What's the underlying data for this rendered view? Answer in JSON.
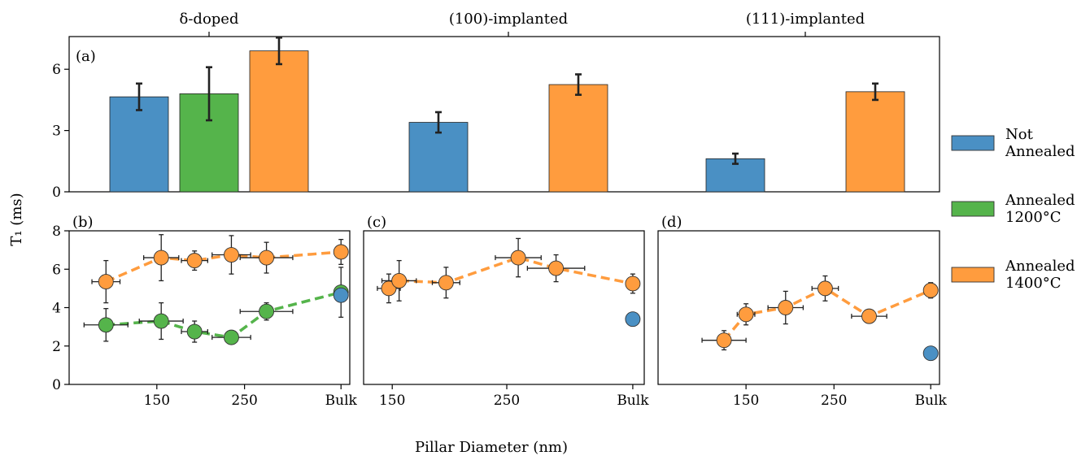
{
  "colors": {
    "not_annealed": "#4a90c4",
    "annealed_1200": "#55b44b",
    "annealed_1400": "#ff9c3e",
    "axis": "#000000",
    "errorbar": "#222222"
  },
  "legend": {
    "position": "right",
    "entries": [
      {
        "key": "not_annealed",
        "lines": [
          "Not",
          "Annealed"
        ]
      },
      {
        "key": "annealed_1200",
        "lines": [
          "Annealed",
          "1200°C"
        ]
      },
      {
        "key": "annealed_1400",
        "lines": [
          "Annealed",
          "1400°C"
        ]
      }
    ]
  },
  "ylabel": "T₁ (ms)",
  "xlabel": "Pillar Diameter (nm)",
  "chart_data": [
    {
      "panel": "(a)",
      "type": "bar",
      "categories": [
        "δ-doped",
        "(100)-implanted",
        "(111)-implanted"
      ],
      "ylim": [
        0,
        7.6
      ],
      "yticks": [
        0,
        3,
        6
      ],
      "grid": false,
      "series": [
        {
          "key": "not_annealed",
          "values": [
            4.65,
            3.4,
            1.62
          ],
          "errors": [
            0.65,
            0.5,
            0.25
          ]
        },
        {
          "key": "annealed_1200",
          "values": [
            4.8,
            null,
            null
          ],
          "errors": [
            1.3,
            null,
            null
          ]
        },
        {
          "key": "annealed_1400",
          "values": [
            6.9,
            5.25,
            4.9
          ],
          "errors": [
            0.65,
            0.5,
            0.4
          ]
        }
      ]
    },
    {
      "panel": "(b)",
      "type": "scatter",
      "xlim": [
        50,
        370
      ],
      "ylim": [
        0,
        8
      ],
      "xticks": [
        {
          "value": 150,
          "label": "150"
        },
        {
          "value": 250,
          "label": "250"
        },
        {
          "value": 360,
          "label": "Bulk"
        }
      ],
      "yticks": [
        0,
        2,
        4,
        6,
        8
      ],
      "series": [
        {
          "key": "annealed_1400",
          "dashed": true,
          "x": [
            92,
            155,
            193,
            235,
            275,
            360
          ],
          "y": [
            5.35,
            6.6,
            6.45,
            6.75,
            6.6,
            6.9
          ],
          "xerr": [
            16,
            20,
            15,
            22,
            30,
            0
          ],
          "yerr": [
            1.1,
            1.2,
            0.5,
            1.0,
            0.8,
            0.65
          ]
        },
        {
          "key": "annealed_1200",
          "dashed": true,
          "x": [
            92,
            155,
            193,
            235,
            275,
            360
          ],
          "y": [
            3.1,
            3.3,
            2.75,
            2.45,
            3.8,
            4.8
          ],
          "xerr": [
            25,
            25,
            15,
            22,
            30,
            0
          ],
          "yerr": [
            0.85,
            0.95,
            0.55,
            0.35,
            0.45,
            1.3
          ]
        },
        {
          "key": "not_annealed",
          "dashed": false,
          "x": [
            360
          ],
          "y": [
            4.65
          ],
          "xerr": [
            0
          ],
          "yerr": [
            0
          ]
        }
      ]
    },
    {
      "panel": "(c)",
      "type": "scatter",
      "xlim": [
        125,
        370
      ],
      "ylim": [
        0,
        8
      ],
      "xticks": [
        {
          "value": 150,
          "label": "150"
        },
        {
          "value": 250,
          "label": "250"
        },
        {
          "value": 360,
          "label": "Bulk"
        }
      ],
      "yticks": [
        0,
        2,
        4,
        6,
        8
      ],
      "series": [
        {
          "key": "annealed_1400",
          "dashed": true,
          "x": [
            147,
            156,
            197,
            260,
            293,
            360
          ],
          "y": [
            5.0,
            5.4,
            5.3,
            6.6,
            6.05,
            5.25
          ],
          "xerr": [
            10,
            15,
            12,
            20,
            25,
            0
          ],
          "yerr": [
            0.75,
            1.05,
            0.8,
            1.0,
            0.7,
            0.5
          ]
        },
        {
          "key": "not_annealed",
          "dashed": false,
          "x": [
            360
          ],
          "y": [
            3.4
          ],
          "xerr": [
            0
          ],
          "yerr": [
            0
          ]
        }
      ]
    },
    {
      "panel": "(d)",
      "type": "scatter",
      "xlim": [
        50,
        370
      ],
      "ylim": [
        0,
        8
      ],
      "xticks": [
        {
          "value": 150,
          "label": "150"
        },
        {
          "value": 250,
          "label": "250"
        },
        {
          "value": 360,
          "label": "Bulk"
        }
      ],
      "yticks": [
        0,
        2,
        4,
        6,
        8
      ],
      "series": [
        {
          "key": "annealed_1400",
          "dashed": true,
          "x": [
            125,
            150,
            195,
            240,
            290,
            360
          ],
          "y": [
            2.3,
            3.65,
            4.0,
            5.0,
            3.55,
            4.9
          ],
          "xerr": [
            25,
            10,
            20,
            15,
            20,
            0
          ],
          "yerr": [
            0.5,
            0.55,
            0.85,
            0.65,
            0.2,
            0.4
          ]
        },
        {
          "key": "not_annealed",
          "dashed": false,
          "x": [
            360
          ],
          "y": [
            1.62
          ],
          "xerr": [
            0
          ],
          "yerr": [
            0
          ]
        }
      ]
    }
  ]
}
